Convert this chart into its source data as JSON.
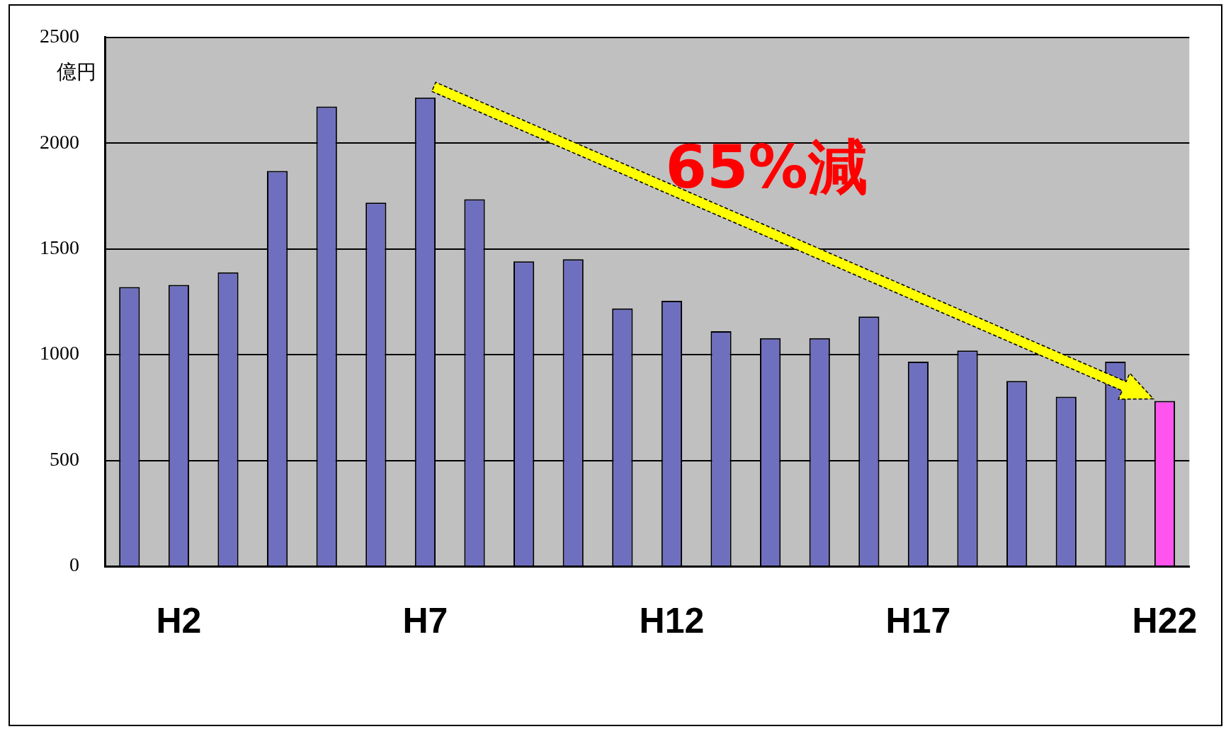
{
  "chart_data": {
    "type": "bar",
    "ylabel": "億円",
    "categories": [
      null,
      "H2",
      null,
      null,
      null,
      null,
      "H7",
      null,
      null,
      null,
      null,
      "H12",
      null,
      null,
      null,
      null,
      "H17",
      null,
      null,
      null,
      null,
      "H22"
    ],
    "values": [
      1320,
      1330,
      1389,
      1869,
      2173,
      1719,
      2216,
      1735,
      1441,
      1451,
      1219,
      1255,
      1111,
      1078,
      1078,
      1180,
      967,
      1020,
      876,
      801,
      967,
      781
    ],
    "colors": [
      "#6f6fc0",
      "#6f6fc0",
      "#6f6fc0",
      "#6f6fc0",
      "#6f6fc0",
      "#6f6fc0",
      "#6f6fc0",
      "#6f6fc0",
      "#6f6fc0",
      "#6f6fc0",
      "#6f6fc0",
      "#6f6fc0",
      "#6f6fc0",
      "#6f6fc0",
      "#6f6fc0",
      "#6f6fc0",
      "#6f6fc0",
      "#6f6fc0",
      "#6f6fc0",
      "#6f6fc0",
      "#6f6fc0",
      "#ff55ee"
    ],
    "ylim": [
      0,
      2500
    ],
    "yticks": [
      0,
      500,
      1000,
      1500,
      2000,
      2500
    ],
    "grid": "y",
    "annotations": [
      "65%減"
    ]
  }
}
